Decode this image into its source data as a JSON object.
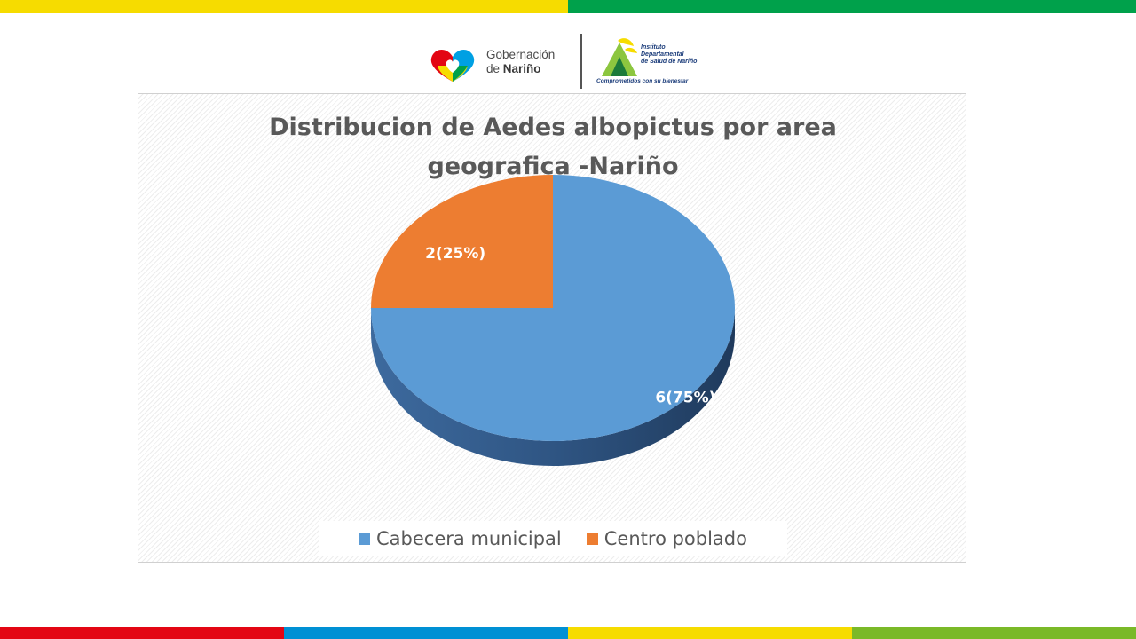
{
  "colors": {
    "top_bar": [
      "#f6dc00",
      "#00a14b"
    ],
    "bottom_bar": [
      "#e30613",
      "#0090d4",
      "#f6dc00",
      "#7ab928"
    ],
    "cabecera": "#5b9bd5",
    "centro": "#ed7d31",
    "side_dark": "#2a4a70"
  },
  "header": {
    "logo_gobernacion_line1": "Gobernación",
    "logo_gobernacion_line2_prefix": "de ",
    "logo_gobernacion_line2_bold": "Nariño",
    "logo_instituto_line1": "Instituto",
    "logo_instituto_line2": "Departamental",
    "logo_instituto_line3": "de Salud de Nariño",
    "logo_instituto_slogan": "Comprometidos con su bienestar"
  },
  "chart_data": {
    "type": "pie",
    "title_line1": "Distribucion de Aedes albopictus por area",
    "title_line2": "geografica -Nariño",
    "categories": [
      "Cabecera municipal",
      "Centro poblado"
    ],
    "values": [
      6,
      2
    ],
    "percentages": [
      75,
      25
    ],
    "data_labels": [
      "6(75%)",
      "2(25%)"
    ],
    "legend_position": "bottom",
    "style": "3d"
  }
}
